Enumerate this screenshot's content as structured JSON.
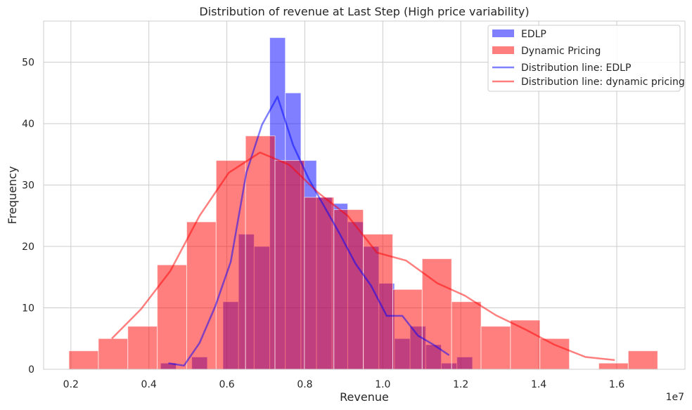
{
  "chart_data": {
    "type": "bar",
    "title": "Distribution of revenue at Last Step (High price variability)",
    "xlabel": "Revenue",
    "ylabel": "Frequency",
    "x_offset_text": "1e7",
    "xlim": [
      0.13,
      1.775
    ],
    "ylim": [
      0,
      56.7
    ],
    "xticks": [
      0.2,
      0.4,
      0.6,
      0.8,
      1.0,
      1.2,
      1.4,
      1.6
    ],
    "xtick_labels": [
      "0.2",
      "0.4",
      "0.6",
      "0.8",
      "1.0",
      "1.2",
      "1.4",
      "1.6"
    ],
    "yticks": [
      0,
      10,
      20,
      30,
      40,
      50
    ],
    "ytick_labels": [
      "0",
      "10",
      "20",
      "30",
      "40",
      "50"
    ],
    "grid": true,
    "legend_position": "top-right",
    "series": [
      {
        "name": "EDLP",
        "kind": "histogram",
        "color": "#0000ff",
        "bar_width": 0.04,
        "bars": [
          {
            "x0": 0.43,
            "value": 1
          },
          {
            "x0": 0.47,
            "value": 0
          },
          {
            "x0": 0.51,
            "value": 2
          },
          {
            "x0": 0.55,
            "value": 0
          },
          {
            "x0": 0.59,
            "value": 11
          },
          {
            "x0": 0.63,
            "value": 22
          },
          {
            "x0": 0.67,
            "value": 20
          },
          {
            "x0": 0.71,
            "value": 54
          },
          {
            "x0": 0.75,
            "value": 45
          },
          {
            "x0": 0.79,
            "value": 34
          },
          {
            "x0": 0.83,
            "value": 28
          },
          {
            "x0": 0.87,
            "value": 27
          },
          {
            "x0": 0.91,
            "value": 24
          },
          {
            "x0": 0.95,
            "value": 20
          },
          {
            "x0": 0.99,
            "value": 14
          },
          {
            "x0": 1.03,
            "value": 5
          },
          {
            "x0": 1.07,
            "value": 7
          },
          {
            "x0": 1.11,
            "value": 4
          },
          {
            "x0": 1.15,
            "value": 1
          },
          {
            "x0": 1.19,
            "value": 2
          }
        ]
      },
      {
        "name": "Dynamic Pricing",
        "kind": "histogram",
        "color": "#ff0000",
        "bar_width": 0.0755,
        "bars": [
          {
            "x0": 0.195,
            "value": 3
          },
          {
            "x0": 0.2705,
            "value": 5
          },
          {
            "x0": 0.346,
            "value": 7
          },
          {
            "x0": 0.4215,
            "value": 17
          },
          {
            "x0": 0.497,
            "value": 24
          },
          {
            "x0": 0.5725,
            "value": 34
          },
          {
            "x0": 0.648,
            "value": 38
          },
          {
            "x0": 0.7235,
            "value": 34
          },
          {
            "x0": 0.799,
            "value": 28
          },
          {
            "x0": 0.8745,
            "value": 26
          },
          {
            "x0": 0.95,
            "value": 22
          },
          {
            "x0": 1.0255,
            "value": 13
          },
          {
            "x0": 1.101,
            "value": 18
          },
          {
            "x0": 1.1765,
            "value": 11
          },
          {
            "x0": 1.252,
            "value": 7
          },
          {
            "x0": 1.3275,
            "value": 8
          },
          {
            "x0": 1.403,
            "value": 5
          },
          {
            "x0": 1.4785,
            "value": 0
          },
          {
            "x0": 1.554,
            "value": 1
          },
          {
            "x0": 1.6295,
            "value": 3
          }
        ]
      },
      {
        "name": "Distribution line: EDLP",
        "kind": "line",
        "color": "#0000ff",
        "points": [
          [
            0.45,
            1.0
          ],
          [
            0.49,
            0.6
          ],
          [
            0.53,
            4.3
          ],
          [
            0.57,
            10.2
          ],
          [
            0.61,
            17.5
          ],
          [
            0.65,
            32.0
          ],
          [
            0.69,
            39.8
          ],
          [
            0.73,
            44.4
          ],
          [
            0.77,
            36.5
          ],
          [
            0.81,
            31.0
          ],
          [
            0.85,
            26.5
          ],
          [
            0.89,
            22.0
          ],
          [
            0.93,
            17.2
          ],
          [
            0.97,
            13.6
          ],
          [
            1.01,
            8.7
          ],
          [
            1.05,
            8.7
          ],
          [
            1.09,
            5.5
          ],
          [
            1.13,
            4.0
          ],
          [
            1.17,
            2.3
          ]
        ]
      },
      {
        "name": "Distribution line: dynamic pricing",
        "kind": "line",
        "color": "#ff0000",
        "points": [
          [
            0.305,
            5.0
          ],
          [
            0.38,
            9.8
          ],
          [
            0.455,
            16.0
          ],
          [
            0.53,
            25.0
          ],
          [
            0.605,
            32.0
          ],
          [
            0.685,
            35.3
          ],
          [
            0.76,
            33.3
          ],
          [
            0.835,
            28.7
          ],
          [
            0.91,
            25.0
          ],
          [
            0.985,
            19.0
          ],
          [
            1.06,
            17.7
          ],
          [
            1.14,
            14.0
          ],
          [
            1.21,
            12.0
          ],
          [
            1.29,
            8.8
          ],
          [
            1.365,
            6.5
          ],
          [
            1.44,
            4.0
          ],
          [
            1.52,
            2.0
          ],
          [
            1.595,
            1.5
          ]
        ]
      }
    ]
  }
}
